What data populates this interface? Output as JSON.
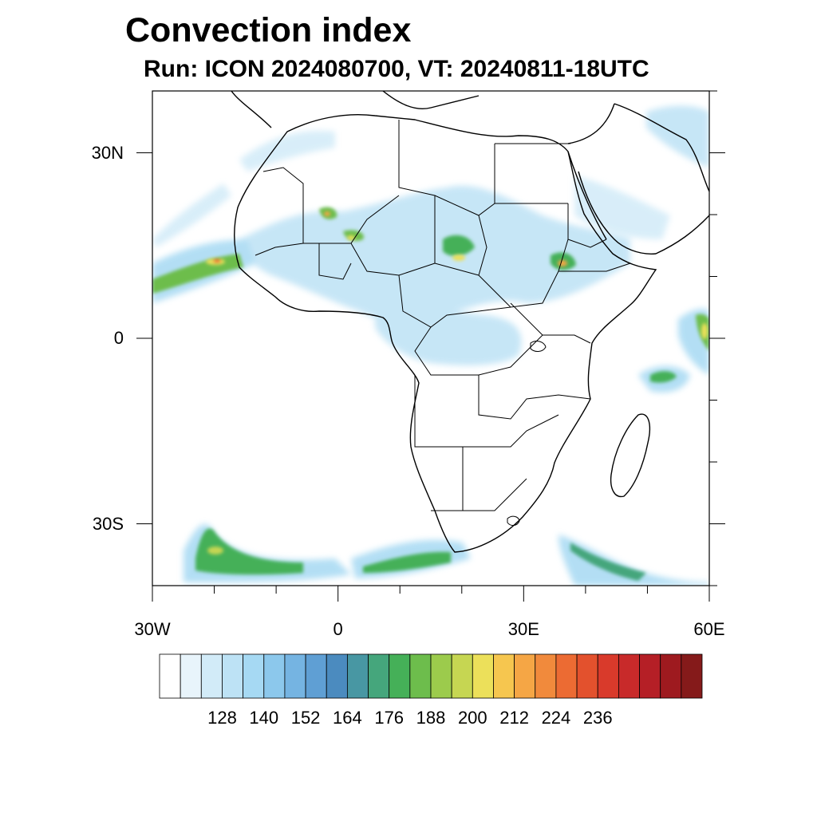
{
  "title": "Convection index",
  "subtitle": "Run: ICON 2024080700,  VT: 20240811-18UTC",
  "map": {
    "lon_range": [
      -30,
      60
    ],
    "lat_range": [
      -40,
      40
    ],
    "lat_ticks": [
      {
        "lat": 30,
        "label": "30N"
      },
      {
        "lat": 0,
        "label": "0"
      },
      {
        "lat": -30,
        "label": "30S"
      }
    ],
    "lon_ticks": [
      {
        "lon": -30,
        "label": "30W"
      },
      {
        "lon": 0,
        "label": "0"
      },
      {
        "lon": 30,
        "label": "30E"
      },
      {
        "lon": 60,
        "label": "60E"
      }
    ]
  },
  "colorbar": {
    "colors": [
      "#ffffff",
      "#e8f4fb",
      "#d2ebf8",
      "#bde2f5",
      "#a6d9f3",
      "#8cc8ec",
      "#75b4e2",
      "#5f9fd4",
      "#4b8bbf",
      "#4897a3",
      "#45a67c",
      "#45b058",
      "#6dbd4c",
      "#9ccb4c",
      "#c6d652",
      "#ece05a",
      "#f6c64f",
      "#f5a645",
      "#f18a3c",
      "#ec6b33",
      "#e3512d",
      "#d93a2b",
      "#c82a2a",
      "#b51f26",
      "#9e1a1f",
      "#851a1a"
    ],
    "labels": [
      "128",
      "140",
      "152",
      "164",
      "176",
      "188",
      "200",
      "212",
      "224",
      "236"
    ]
  }
}
